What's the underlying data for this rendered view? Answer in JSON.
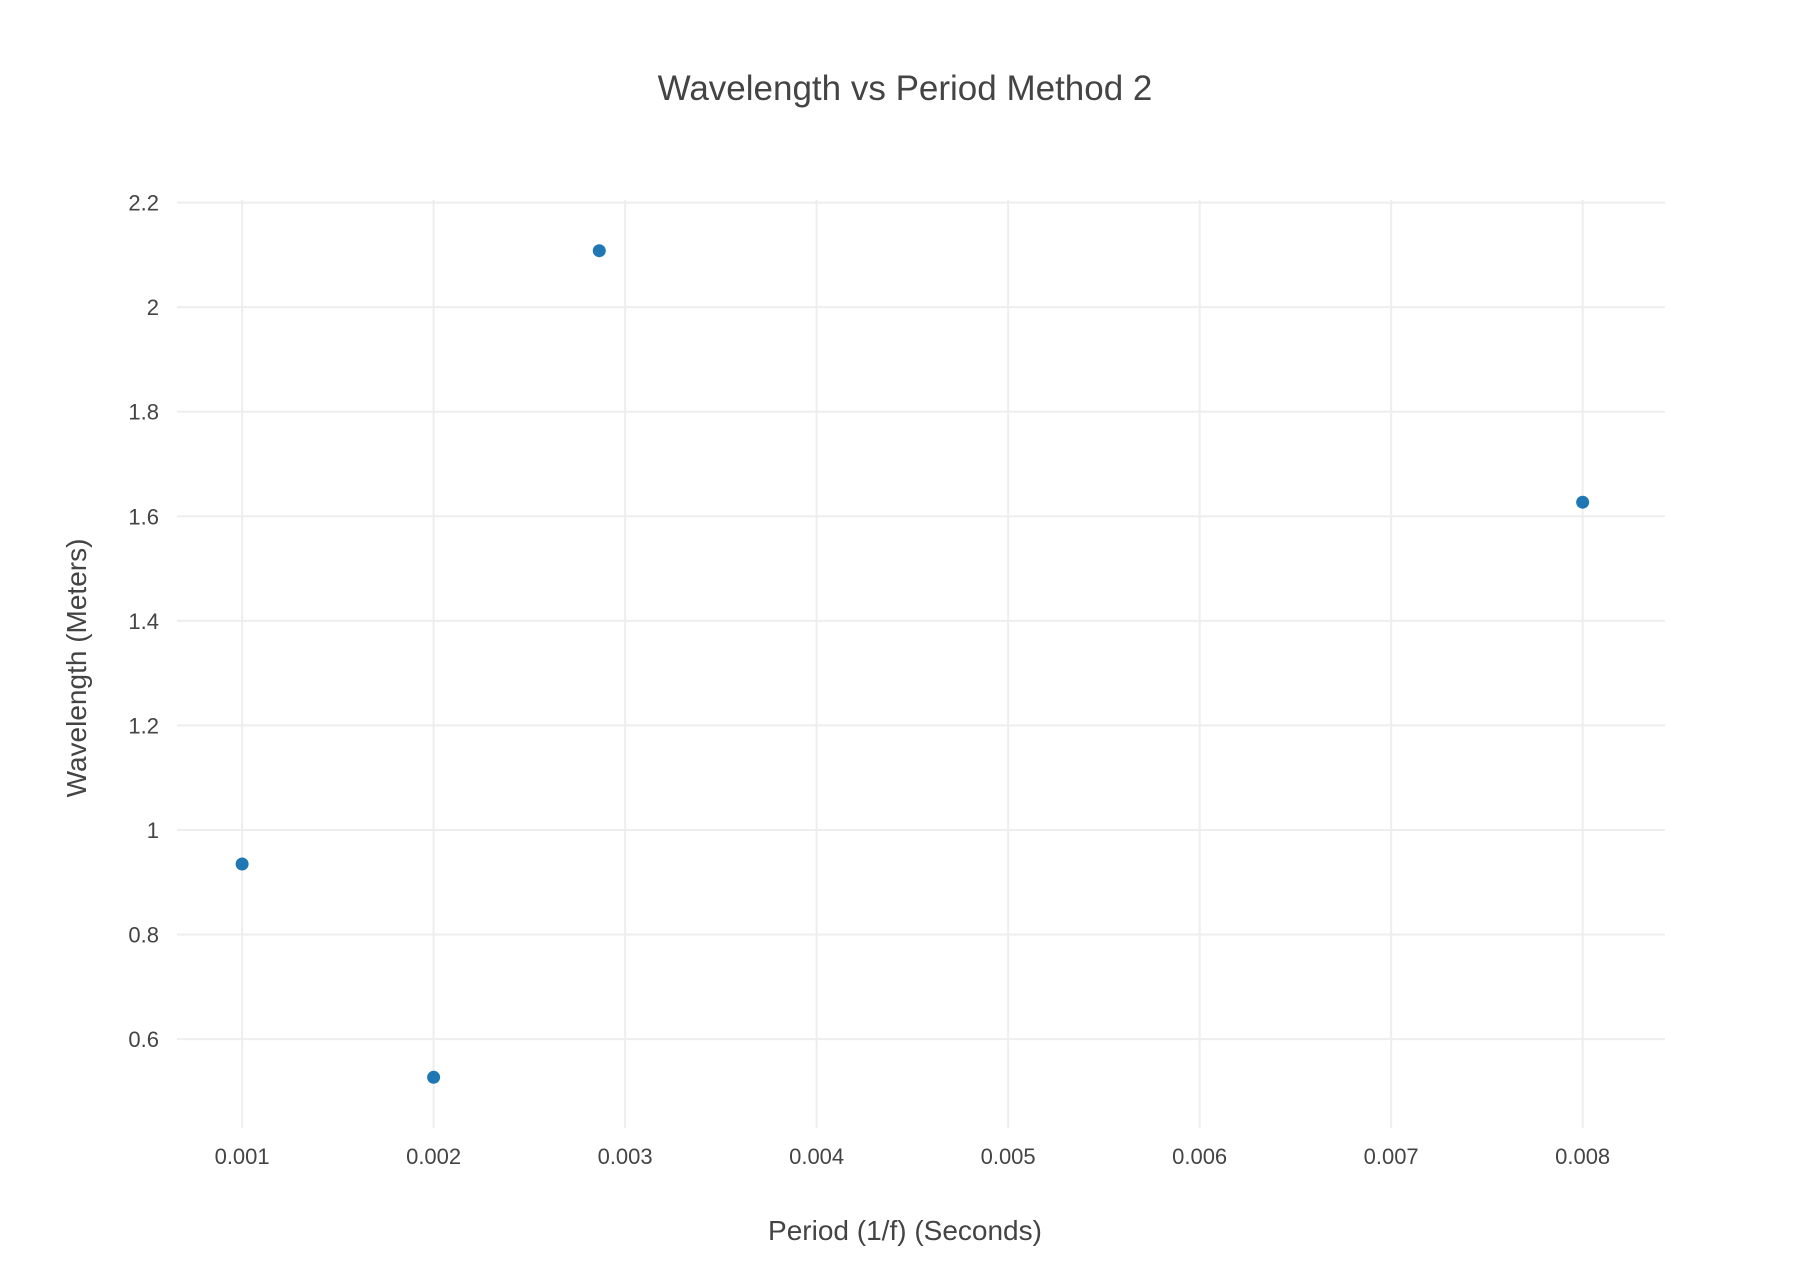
{
  "chart_data": {
    "type": "scatter",
    "title": "Wavelength vs Period Method 2",
    "xlabel": "Period (1/f) (Seconds)",
    "ylabel": "Wavelength (Meters)",
    "xlim": [
      0.00066,
      0.00843
    ],
    "ylim": [
      0.43,
      2.205
    ],
    "x_ticks": [
      0.001,
      0.002,
      0.003,
      0.004,
      0.005,
      0.006,
      0.007,
      0.008
    ],
    "x_tick_labels": [
      "0.001",
      "0.002",
      "0.003",
      "0.004",
      "0.005",
      "0.006",
      "0.007",
      "0.008"
    ],
    "y_ticks": [
      0.6,
      0.8,
      1,
      1.2,
      1.4,
      1.6,
      1.8,
      2,
      2.2
    ],
    "y_tick_labels": [
      "0.6",
      "0.8",
      "1",
      "1.2",
      "1.4",
      "1.6",
      "1.8",
      "2",
      "2.2"
    ],
    "grid": true,
    "series": [
      {
        "color": "#1f77b4",
        "x": [
          0.001,
          0.002,
          0.002865,
          0.008
        ],
        "y": [
          0.935,
          0.527,
          2.108,
          1.627
        ]
      }
    ]
  }
}
